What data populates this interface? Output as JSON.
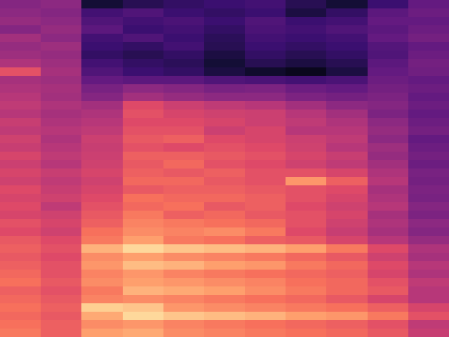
{
  "chart_data": {
    "type": "heatmap",
    "color": "magma",
    "tick_labels": false,
    "zlim": [
      0,
      100
    ],
    "cells": [
      [
        38,
        40,
        10,
        15,
        18,
        20,
        22,
        15,
        10,
        20,
        30
      ],
      [
        40,
        38,
        22,
        25,
        20,
        18,
        20,
        12,
        18,
        28,
        32
      ],
      [
        42,
        40,
        25,
        22,
        24,
        20,
        25,
        20,
        22,
        30,
        30
      ],
      [
        38,
        42,
        28,
        20,
        22,
        18,
        24,
        22,
        25,
        28,
        32
      ],
      [
        45,
        40,
        22,
        25,
        20,
        16,
        22,
        20,
        22,
        30,
        34
      ],
      [
        42,
        44,
        20,
        18,
        22,
        15,
        20,
        18,
        20,
        26,
        30
      ],
      [
        44,
        42,
        18,
        15,
        18,
        12,
        18,
        15,
        18,
        25,
        32
      ],
      [
        48,
        44,
        22,
        18,
        16,
        10,
        15,
        12,
        15,
        28,
        34
      ],
      [
        62,
        46,
        25,
        20,
        18,
        12,
        8,
        5,
        12,
        30,
        33
      ],
      [
        46,
        44,
        30,
        28,
        28,
        25,
        24,
        22,
        24,
        32,
        30
      ],
      [
        48,
        46,
        35,
        40,
        38,
        35,
        36,
        32,
        30,
        34,
        32
      ],
      [
        50,
        45,
        38,
        45,
        42,
        40,
        40,
        36,
        34,
        36,
        30
      ],
      [
        52,
        48,
        45,
        60,
        55,
        52,
        50,
        45,
        40,
        38,
        32
      ],
      [
        50,
        46,
        48,
        62,
        58,
        56,
        55,
        50,
        45,
        36,
        30
      ],
      [
        54,
        48,
        50,
        60,
        60,
        58,
        55,
        52,
        48,
        40,
        32
      ],
      [
        52,
        50,
        52,
        62,
        62,
        55,
        58,
        50,
        50,
        42,
        34
      ],
      [
        56,
        48,
        55,
        64,
        66,
        60,
        58,
        55,
        52,
        40,
        30
      ],
      [
        54,
        50,
        54,
        62,
        60,
        62,
        60,
        56,
        50,
        44,
        32
      ],
      [
        58,
        52,
        55,
        66,
        66,
        64,
        62,
        58,
        54,
        42,
        34
      ],
      [
        55,
        50,
        56,
        64,
        68,
        62,
        60,
        56,
        52,
        45,
        32
      ],
      [
        58,
        54,
        58,
        66,
        64,
        66,
        62,
        62,
        58,
        48,
        35
      ],
      [
        56,
        52,
        56,
        68,
        68,
        64,
        62,
        78,
        66,
        50,
        34
      ],
      [
        60,
        54,
        58,
        64,
        66,
        66,
        64,
        62,
        60,
        46,
        36
      ],
      [
        58,
        56,
        60,
        70,
        68,
        68,
        66,
        62,
        58,
        48,
        35
      ],
      [
        60,
        52,
        62,
        68,
        70,
        64,
        66,
        60,
        56,
        50,
        38
      ],
      [
        58,
        56,
        64,
        72,
        66,
        68,
        64,
        62,
        58,
        46,
        36
      ],
      [
        62,
        58,
        66,
        74,
        72,
        70,
        68,
        62,
        56,
        48,
        40
      ],
      [
        60,
        56,
        70,
        76,
        74,
        76,
        72,
        60,
        54,
        46,
        38
      ],
      [
        64,
        60,
        72,
        80,
        72,
        70,
        66,
        64,
        58,
        50,
        42
      ],
      [
        66,
        62,
        84,
        92,
        88,
        86,
        84,
        80,
        72,
        60,
        48
      ],
      [
        64,
        60,
        76,
        80,
        76,
        74,
        72,
        68,
        64,
        56,
        46
      ],
      [
        66,
        62,
        78,
        86,
        84,
        80,
        78,
        72,
        68,
        60,
        50
      ],
      [
        68,
        62,
        74,
        78,
        74,
        72,
        70,
        68,
        66,
        58,
        48
      ],
      [
        70,
        64,
        76,
        80,
        78,
        76,
        74,
        70,
        68,
        62,
        52
      ],
      [
        66,
        62,
        72,
        84,
        82,
        80,
        76,
        72,
        68,
        64,
        50
      ],
      [
        68,
        64,
        74,
        76,
        74,
        72,
        70,
        68,
        64,
        58,
        50
      ],
      [
        70,
        66,
        90,
        88,
        78,
        76,
        74,
        72,
        70,
        66,
        58
      ],
      [
        68,
        64,
        82,
        92,
        88,
        86,
        84,
        80,
        78,
        72,
        62
      ],
      [
        70,
        66,
        76,
        78,
        74,
        72,
        70,
        68,
        66,
        62,
        52
      ],
      [
        72,
        66,
        80,
        82,
        76,
        74,
        72,
        70,
        68,
        64,
        54
      ]
    ]
  }
}
